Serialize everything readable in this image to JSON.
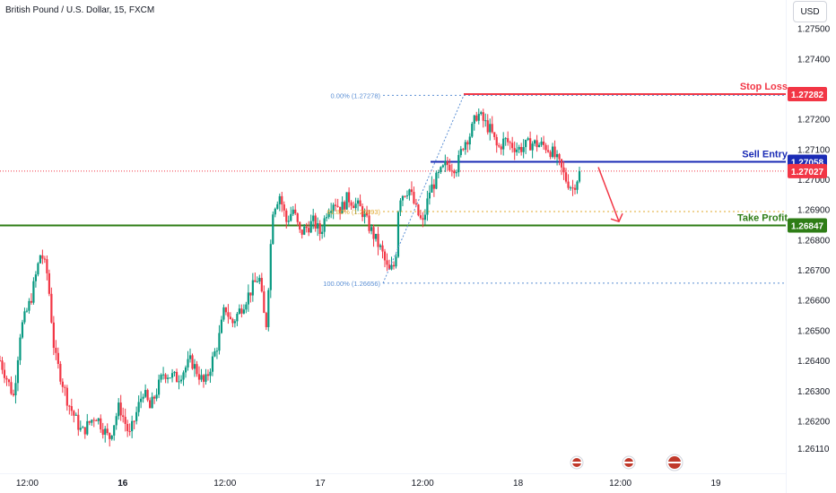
{
  "header": {
    "title": "British Pound / U.S. Dollar, 15, FXCM"
  },
  "currency_button": {
    "label": "USD"
  },
  "colors": {
    "up": "#089981",
    "down": "#f23645",
    "stop_loss": "#f23645",
    "sell_entry": "#1a2bb5",
    "take_profit": "#2e7d16",
    "current_price": "#f23645",
    "fib": "#5b8fd4",
    "fib_mid": "#e0a82e"
  },
  "chart_data": {
    "type": "candlestick",
    "title": "British Pound / U.S. Dollar, 15, FXCM",
    "ylim": [
      1.2605,
      1.2757
    ],
    "y_ticks": [
      "1.27500",
      "1.27400",
      "1.27200",
      "1.27100",
      "1.27000",
      "1.26900",
      "1.26800",
      "1.26700",
      "1.26600",
      "1.26500",
      "1.26400",
      "1.26300",
      "1.26200",
      "1.26110"
    ],
    "x_ticks": [
      {
        "label": "12:00",
        "t": 0.04
      },
      {
        "label": "16",
        "t": 0.18,
        "bold": true
      },
      {
        "label": "12:00",
        "t": 0.33
      },
      {
        "label": "17",
        "t": 0.47
      },
      {
        "label": "12:00",
        "t": 0.62
      },
      {
        "label": "18",
        "t": 0.76
      },
      {
        "label": "12:00",
        "t": 0.91
      },
      {
        "label": "19",
        "t": 1.05
      }
    ],
    "path": [
      [
        0.0,
        1.264
      ],
      [
        0.02,
        1.2628
      ],
      [
        0.03,
        1.265
      ],
      [
        0.045,
        1.266
      ],
      [
        0.06,
        1.2676
      ],
      [
        0.07,
        1.2668
      ],
      [
        0.08,
        1.2642
      ],
      [
        0.1,
        1.2626
      ],
      [
        0.12,
        1.2616
      ],
      [
        0.14,
        1.2622
      ],
      [
        0.16,
        1.2614
      ],
      [
        0.175,
        1.2625
      ],
      [
        0.19,
        1.2615
      ],
      [
        0.21,
        1.263
      ],
      [
        0.22,
        1.2624
      ],
      [
        0.24,
        1.2636
      ],
      [
        0.26,
        1.2634
      ],
      [
        0.28,
        1.264
      ],
      [
        0.3,
        1.2632
      ],
      [
        0.32,
        1.2646
      ],
      [
        0.33,
        1.2658
      ],
      [
        0.34,
        1.2652
      ],
      [
        0.36,
        1.266
      ],
      [
        0.38,
        1.2668
      ],
      [
        0.39,
        1.265
      ],
      [
        0.4,
        1.269
      ],
      [
        0.41,
        1.2695
      ],
      [
        0.42,
        1.2686
      ],
      [
        0.43,
        1.269
      ],
      [
        0.44,
        1.2682
      ],
      [
        0.46,
        1.2686
      ],
      [
        0.47,
        1.2682
      ],
      [
        0.48,
        1.269
      ],
      [
        0.49,
        1.2693
      ],
      [
        0.5,
        1.269
      ],
      [
        0.51,
        1.2694
      ],
      [
        0.53,
        1.269
      ],
      [
        0.54,
        1.2685
      ],
      [
        0.56,
        1.2676
      ],
      [
        0.57,
        1.2669
      ],
      [
        0.58,
        1.2672
      ],
      [
        0.585,
        1.2694
      ],
      [
        0.6,
        1.2697
      ],
      [
        0.61,
        1.269
      ],
      [
        0.62,
        1.2685
      ],
      [
        0.63,
        1.2696
      ],
      [
        0.64,
        1.27
      ],
      [
        0.655,
        1.2705
      ],
      [
        0.67,
        1.2704
      ],
      [
        0.68,
        1.2712
      ],
      [
        0.69,
        1.2715
      ],
      [
        0.7,
        1.2722
      ],
      [
        0.71,
        1.2719
      ],
      [
        0.72,
        1.2716
      ],
      [
        0.73,
        1.271
      ],
      [
        0.74,
        1.2713
      ],
      [
        0.76,
        1.271
      ],
      [
        0.78,
        1.2712
      ],
      [
        0.8,
        1.2711
      ],
      [
        0.81,
        1.2709
      ],
      [
        0.82,
        1.2705
      ],
      [
        0.83,
        1.27
      ],
      [
        0.84,
        1.2697
      ],
      [
        0.85,
        1.2702
      ]
    ],
    "levels": [
      {
        "label": "Stop Loss",
        "value": 1.27282,
        "tag": "1.27282"
      },
      {
        "label": "Sell Entry",
        "value": 1.27058,
        "tag": "1.27058"
      },
      {
        "label": "Take Profit",
        "value": 1.26847,
        "tag": "1.26847"
      }
    ],
    "current_price": {
      "value": 1.27027,
      "tag": "1.27027"
    },
    "fib": [
      {
        "label": "0.00% (1.27278)",
        "value": 1.27278
      },
      {
        "label": "61.80% (1.26893)",
        "value": 1.26893
      },
      {
        "label": "100.00% (1.26656)",
        "value": 1.26656
      }
    ],
    "arrow": {
      "from_value": 1.2704,
      "to_value": 1.2686
    }
  }
}
